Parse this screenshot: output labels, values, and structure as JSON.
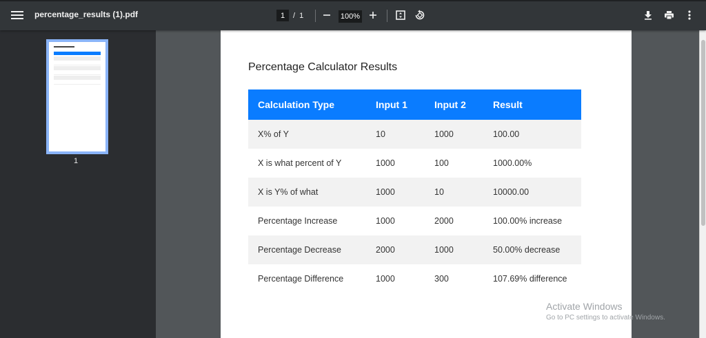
{
  "toolbar": {
    "doc_title": "percentage_results (1).pdf",
    "page_current": "1",
    "page_sep": "/",
    "page_total": "1",
    "zoom": "100%",
    "icons": [
      "menu-icon",
      "zoom-out-icon",
      "zoom-in-icon",
      "fit-page-icon",
      "rotate-icon",
      "download-icon",
      "print-icon",
      "more-vert-icon"
    ]
  },
  "sidebar": {
    "thumbnails": [
      {
        "label": "1"
      }
    ]
  },
  "document": {
    "title": "Percentage Calculator Results",
    "table": {
      "headers": [
        "Calculation Type",
        "Input 1",
        "Input 2",
        "Result"
      ],
      "rows": [
        [
          "X% of Y",
          "10",
          "1000",
          "100.00"
        ],
        [
          "X is what percent of Y",
          "1000",
          "100",
          "1000.00%"
        ],
        [
          "X is Y% of what",
          "1000",
          "10",
          "10000.00"
        ],
        [
          "Percentage Increase",
          "1000",
          "2000",
          "100.00% increase"
        ],
        [
          "Percentage Decrease",
          "2000",
          "1000",
          "50.00% decrease"
        ],
        [
          "Percentage Difference",
          "1000",
          "300",
          "107.69% difference"
        ]
      ]
    },
    "colors": {
      "header_bg": "#0a7cff",
      "stripe": "#f2f2f2"
    }
  },
  "watermark": {
    "line1": "Activate Windows",
    "line2": "Go to PC settings to activate Windows."
  }
}
